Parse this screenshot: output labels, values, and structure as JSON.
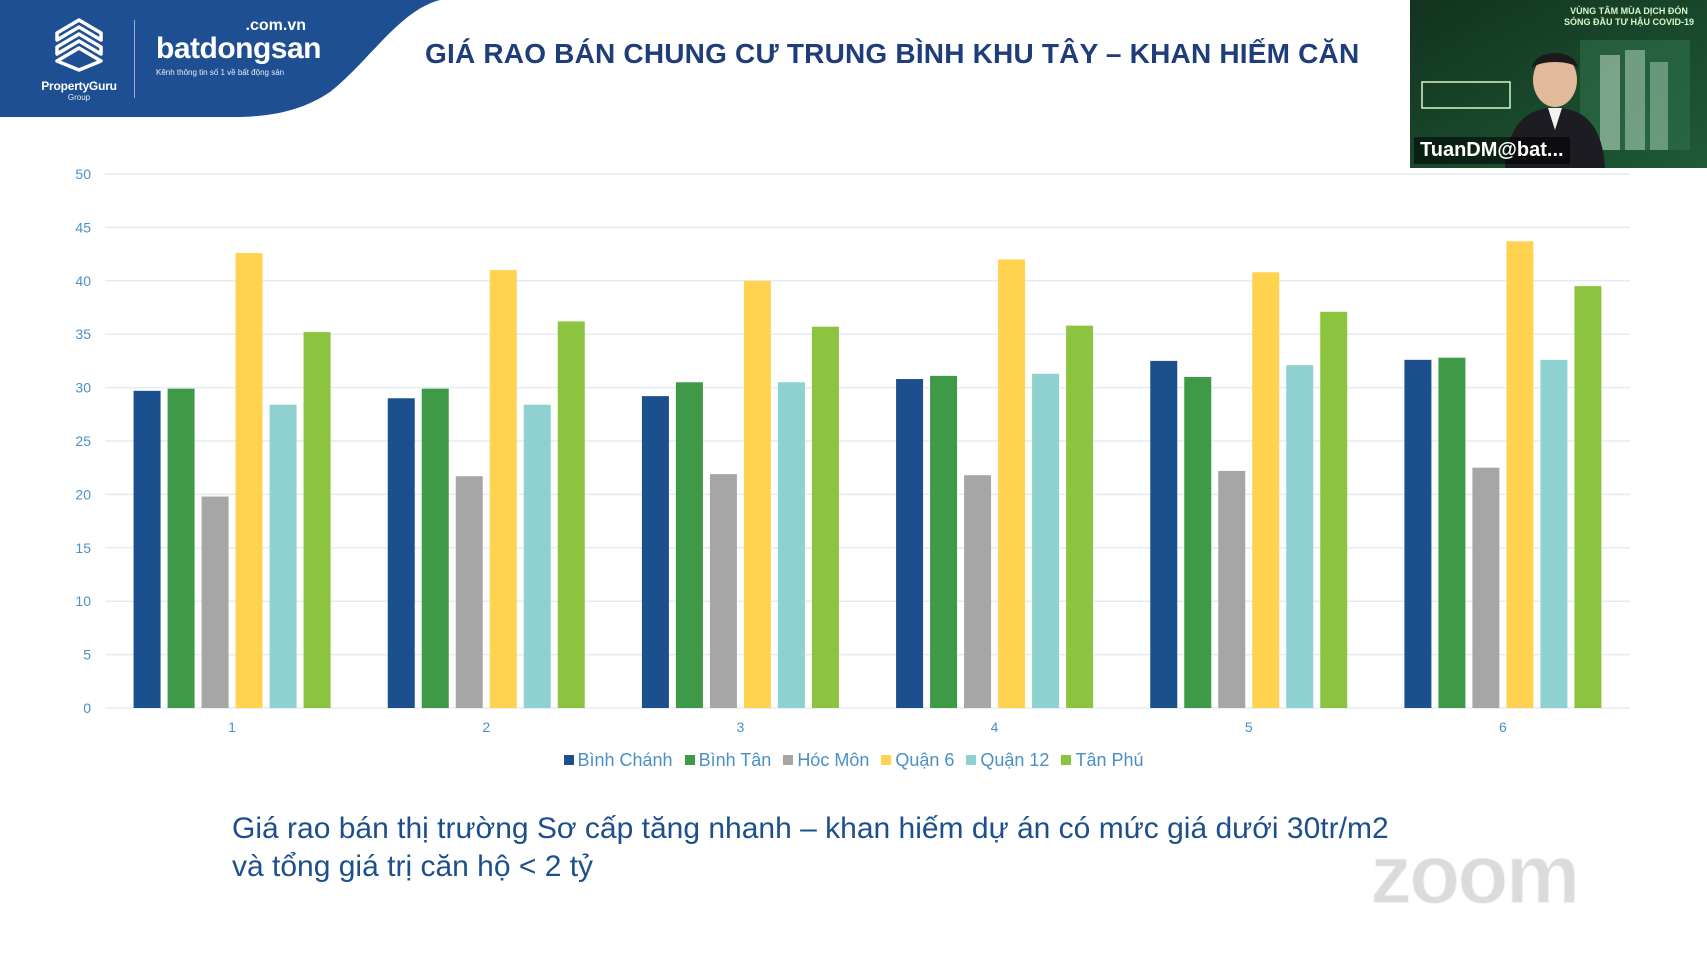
{
  "header": {
    "logo_primary": "PropertyGuru",
    "logo_primary_sub": "Group",
    "logo_secondary_domain": ".com.vn",
    "logo_secondary": "batdongsan",
    "logo_secondary_tagline": "Kênh thông tin số 1 về bất động sản",
    "title": "GIÁ RAO BÁN CHUNG CƯ TRUNG BÌNH KHU TÂY – KHAN HIẾM CĂN"
  },
  "video": {
    "participant_name": "TuanDM@bat...",
    "banner_text": "VÙNG TÂM MÙA DỊCH ĐÓN SÓNG ĐẦU TƯ HẬU COVID-19"
  },
  "chart_data": {
    "type": "bar",
    "categories": [
      "1",
      "2",
      "3",
      "4",
      "5",
      "6"
    ],
    "ylim": [
      0,
      50
    ],
    "yticks": [
      0,
      5,
      10,
      15,
      20,
      25,
      30,
      35,
      40,
      45,
      50
    ],
    "grid": true,
    "legend_position": "bottom",
    "series": [
      {
        "name": "Bình Chánh",
        "color": "#1b4f8e",
        "values": [
          29.7,
          29.0,
          29.2,
          30.8,
          32.5,
          32.6
        ]
      },
      {
        "name": "Bình Tân",
        "color": "#3f9a48",
        "values": [
          29.9,
          29.9,
          30.5,
          31.1,
          31.0,
          32.8
        ]
      },
      {
        "name": "Hóc Môn",
        "color": "#a6a6a6",
        "values": [
          19.8,
          21.7,
          21.9,
          21.8,
          22.2,
          22.5
        ]
      },
      {
        "name": "Quận 6",
        "color": "#ffd34f",
        "values": [
          42.6,
          41.0,
          40.0,
          42.0,
          40.8,
          43.7
        ]
      },
      {
        "name": "Quận 12",
        "color": "#8fd1d1",
        "values": [
          28.4,
          28.4,
          30.5,
          31.3,
          32.1,
          32.6
        ]
      },
      {
        "name": "Tân Phú",
        "color": "#8cc43f",
        "values": [
          35.2,
          36.2,
          35.7,
          35.8,
          37.1,
          39.5
        ]
      }
    ]
  },
  "caption": {
    "line1": "Giá rao bán thị trường Sơ cấp tăng nhanh – khan hiếm dự án có mức giá dưới 30tr/m2",
    "line2": "và tổng giá trị căn hộ < 2 tỷ"
  },
  "watermark": "zoom",
  "colors": {
    "header_band": "#1f4f93",
    "title": "#1f3d7a",
    "axis_text": "#4a90c6",
    "grid": "#e3ecf4",
    "caption": "#1d4f8c"
  }
}
